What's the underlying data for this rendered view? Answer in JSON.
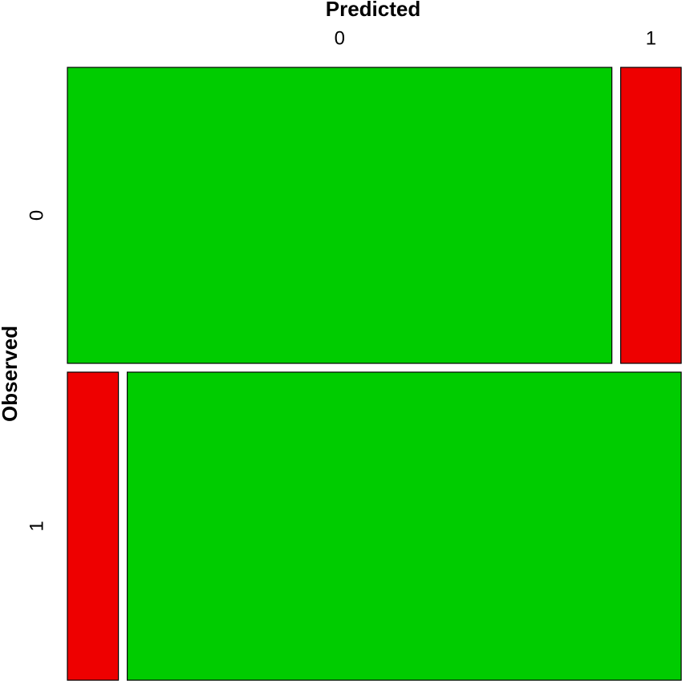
{
  "chart_data": {
    "type": "mosaic",
    "x_label": "Predicted",
    "y_label": "Observed",
    "x_categories": [
      "0",
      "1"
    ],
    "y_categories": [
      "0",
      "1"
    ],
    "values": [
      [
        44.1,
        4.9
      ],
      [
        4.3,
        46.7
      ]
    ],
    "colors": [
      [
        "#00cc00",
        "#ee0000"
      ],
      [
        "#ee0000",
        "#00cc00"
      ]
    ]
  }
}
